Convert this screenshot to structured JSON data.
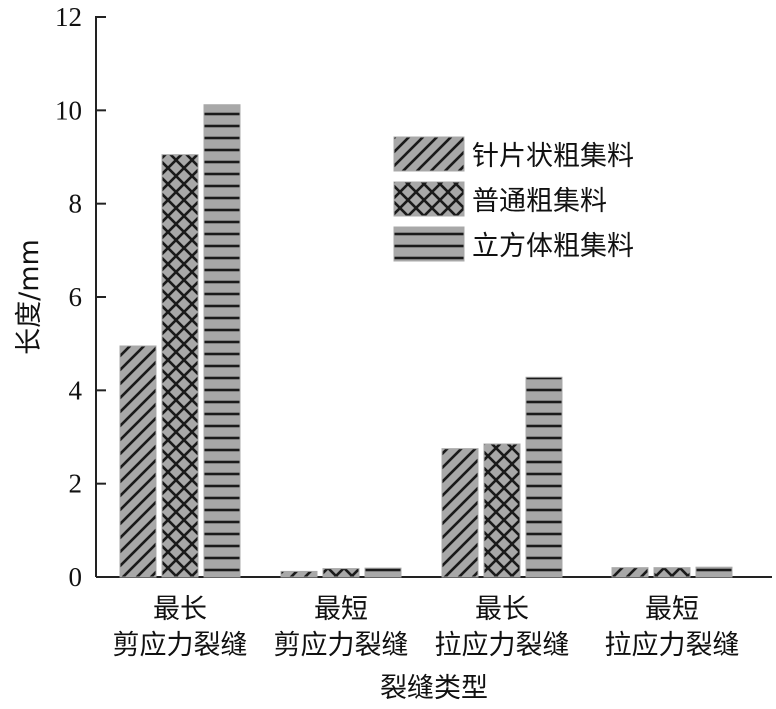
{
  "chart_data": {
    "type": "bar",
    "title": "",
    "xlabel": "裂缝类型",
    "ylabel": "长度/mm",
    "ylim": [
      0,
      12
    ],
    "yticks": [
      0,
      2,
      4,
      6,
      8,
      10,
      12
    ],
    "grid": false,
    "legend_position": "top-right",
    "categories": [
      [
        "最长",
        "剪应力裂缝"
      ],
      [
        "最短",
        "剪应力裂缝"
      ],
      [
        "最长",
        "拉应力裂缝"
      ],
      [
        "最短",
        "拉应力裂缝"
      ]
    ],
    "series": [
      {
        "name": "针片状粗集料",
        "pattern": "diagonal",
        "values": [
          4.95,
          0.12,
          2.75,
          0.2
        ]
      },
      {
        "name": "普通粗集料",
        "pattern": "crosshatch",
        "values": [
          9.05,
          0.18,
          2.85,
          0.2
        ]
      },
      {
        "name": "立方体粗集料",
        "pattern": "horizontal",
        "values": [
          10.12,
          0.19,
          4.28,
          0.21
        ]
      }
    ],
    "colors": {
      "bar_fill": "#a8a8a8",
      "pattern_stroke": "#1a1a1a",
      "axis": "#222222"
    }
  }
}
